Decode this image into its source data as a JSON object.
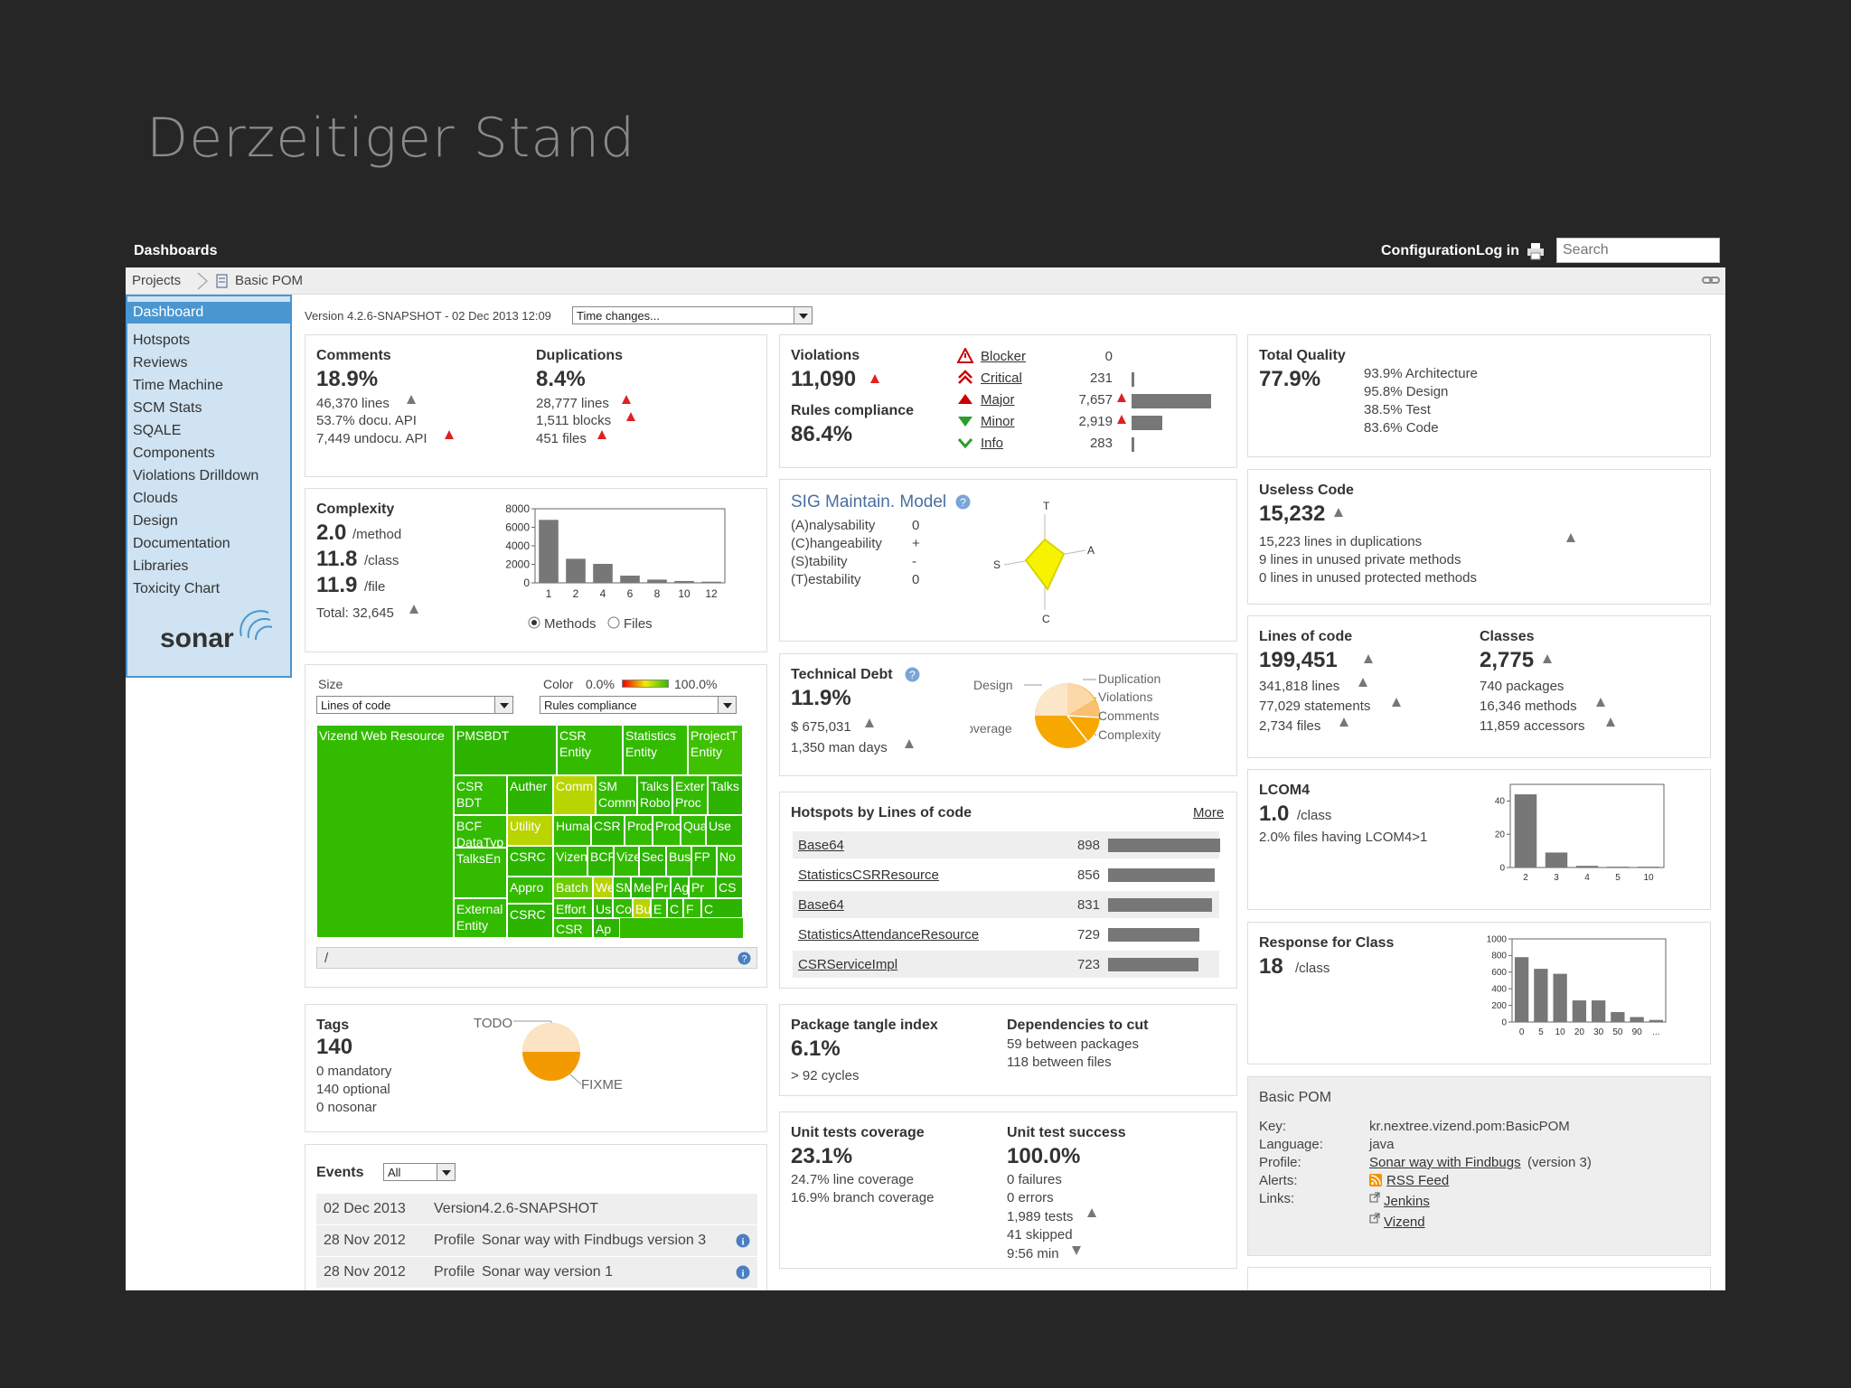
{
  "slide_title": "Derzeitiger Stand",
  "topbar": {
    "dashboards": "Dashboards",
    "configuration": "Configuration",
    "login": "Log in",
    "search_placeholder": "Search"
  },
  "breadcrumb": {
    "projects": "Projects",
    "project": "Basic POM"
  },
  "sidebar": {
    "items": [
      "Dashboard",
      "Hotspots",
      "Reviews",
      "Time Machine",
      "SCM Stats",
      "SQALE",
      "Components",
      "Violations Drilldown",
      "Clouds",
      "Design",
      "Documentation",
      "Libraries",
      "Toxicity Chart"
    ],
    "logo": "sonar"
  },
  "version_line": "Version 4.2.6-SNAPSHOT - 02 Dec 2013 12:09",
  "time_changes": "Time changes...",
  "comments": {
    "label": "Comments",
    "value": "18.9%",
    "lines": "46,370 lines",
    "docu_api": "53.7% docu. API",
    "undocu_api": "7,449 undocu. API"
  },
  "duplications": {
    "label": "Duplications",
    "value": "8.4%",
    "lines": "28,777 lines",
    "blocks": "1,511 blocks",
    "files": "451 files"
  },
  "complexity": {
    "label": "Complexity",
    "per_method": "2.0",
    "per_method_unit": "/method",
    "per_class": "11.8",
    "per_class_unit": "/class",
    "per_file": "11.9",
    "per_file_unit": "/file",
    "total": "Total: 32,645",
    "radio_methods": "Methods",
    "radio_files": "Files"
  },
  "complexity_chart": {
    "type": "bar",
    "categories": [
      "1",
      "2",
      "4",
      "6",
      "8",
      "10",
      "12"
    ],
    "values": [
      6800,
      2600,
      2050,
      780,
      350,
      200,
      130
    ],
    "ylim": [
      0,
      8000
    ],
    "yticks": [
      "8000",
      "6000",
      "4000",
      "2000",
      "0"
    ]
  },
  "treemap": {
    "size_label": "Size",
    "color_label": "Color",
    "color_min": "0.0%",
    "color_max": "100.0%",
    "size_select": "Lines of code",
    "color_select": "Rules compliance",
    "path": "/",
    "cells": [
      "Vizend Web Resource",
      "PMSBDT",
      "CSR Entity",
      "Statistics Entity",
      "ProjectT Entity",
      "CSR BDT",
      "Auther",
      "Comm",
      "SM Comm",
      "Talks Robo",
      "Exter Proc",
      "Talks",
      "BCF DataTyp",
      "Utility",
      "Huma",
      "CSR",
      "Prod",
      "Proc",
      "Qua",
      "Use",
      "TalksEn",
      "CSRC",
      "Vizen",
      "BCF",
      "Vize",
      "Sec",
      "Bus",
      "FP",
      "No",
      "Appro",
      "Batch",
      "We",
      "SM",
      "Me",
      "Pr",
      "Ag",
      "Pr",
      "CS",
      "External Entity",
      "CSRC",
      "Effort",
      "Us",
      "Co",
      "Bu",
      "E",
      "C",
      "F",
      "C",
      "CSR",
      "Ap"
    ]
  },
  "violations": {
    "label": "Violations",
    "value": "11,090",
    "rules_label": "Rules compliance",
    "rules_value": "86.4%",
    "severities": [
      {
        "name": "Blocker",
        "count": "0"
      },
      {
        "name": "Critical",
        "count": "231"
      },
      {
        "name": "Major",
        "count": "7,657"
      },
      {
        "name": "Minor",
        "count": "2,919"
      },
      {
        "name": "Info",
        "count": "283"
      }
    ]
  },
  "sig": {
    "title": "SIG Maintain. Model",
    "rows": [
      {
        "k": "(A)nalysability",
        "v": "0"
      },
      {
        "k": "(C)hangeability",
        "v": "+"
      },
      {
        "k": "(S)tability",
        "v": "-"
      },
      {
        "k": "(T)estability",
        "v": "0"
      }
    ],
    "axes": [
      "T",
      "A",
      "C",
      "S"
    ]
  },
  "tech_debt": {
    "label": "Technical Debt",
    "value": "11.9%",
    "money": "$ 675,031",
    "days": "1,350 man days",
    "pie_labels": [
      "Design",
      "Coverage",
      "Duplication",
      "Violations",
      "Comments",
      "Complexity"
    ]
  },
  "hotspots": {
    "title": "Hotspots by Lines of code",
    "more": "More",
    "rows": [
      {
        "name": "Base64",
        "value": "898",
        "frac": 1.0
      },
      {
        "name": "StatisticsCSRResource",
        "value": "856",
        "frac": 0.953
      },
      {
        "name": "Base64",
        "value": "831",
        "frac": 0.925
      },
      {
        "name": "StatisticsAttendanceResource",
        "value": "729",
        "frac": 0.812
      },
      {
        "name": "CSRServiceImpl",
        "value": "723",
        "frac": 0.805
      }
    ]
  },
  "tags": {
    "label": "Tags",
    "value": "140",
    "mandatory": "0 mandatory",
    "optional": "140 optional",
    "nosonar": "0 nosonar",
    "todo": "TODO",
    "fixme": "FIXME"
  },
  "package": {
    "label": "Package tangle index",
    "value": "6.1%",
    "cycles": "> 92 cycles",
    "deps_label": "Dependencies to cut",
    "deps_packages": "59 between packages",
    "deps_files": "118 between files"
  },
  "events": {
    "label": "Events",
    "filter": "All",
    "rows": [
      {
        "date": "02 Dec 2013",
        "type": "Version",
        "desc": "4.2.6-SNAPSHOT"
      },
      {
        "date": "28 Nov 2012",
        "type": "Profile",
        "desc": "Sonar way with Findbugs version 3"
      },
      {
        "date": "28 Nov 2012",
        "type": "Profile",
        "desc": "Sonar way version 1"
      }
    ]
  },
  "unit_tests": {
    "label": "Unit tests coverage",
    "value": "23.1%",
    "line": "24.7% line coverage",
    "branch": "16.9% branch coverage",
    "success_label": "Unit test success",
    "success_value": "100.0%",
    "failures": "0 failures",
    "errors": "0 errors",
    "tests": "1,989 tests",
    "skipped": "41 skipped",
    "time": "9:56 min"
  },
  "total_quality": {
    "label": "Total Quality",
    "value": "77.9%",
    "architecture": "93.9% Architecture",
    "design": "95.8% Design",
    "test": "38.5% Test",
    "code": "83.6% Code"
  },
  "useless_code": {
    "label": "Useless Code",
    "value": "15,232",
    "dup": "15,223 lines in duplications",
    "private": "9 lines in unused private methods",
    "protected": "0 lines in unused protected methods"
  },
  "loc": {
    "label": "Lines of code",
    "value": "199,451",
    "lines": "341,818 lines",
    "statements": "77,029 statements",
    "files": "2,734 files",
    "classes_label": "Classes",
    "classes_value": "2,775",
    "packages": "740 packages",
    "methods": "16,346 methods",
    "accessors": "11,859 accessors"
  },
  "lcom4": {
    "label": "LCOM4",
    "value": "1.0",
    "unit": "/class",
    "files": "2.0% files having LCOM4>1"
  },
  "lcom4_chart": {
    "type": "bar",
    "categories": [
      "2",
      "3",
      "4",
      "5",
      "10"
    ],
    "values": [
      44,
      9,
      1,
      0.5,
      0.5
    ],
    "ylim": [
      0,
      50
    ],
    "yticks": [
      "40",
      "20",
      "0"
    ]
  },
  "rfc": {
    "label": "Response for Class",
    "value": "18",
    "unit": "/class"
  },
  "rfc_chart": {
    "type": "bar",
    "categories": [
      "0",
      "5",
      "10",
      "20",
      "30",
      "50",
      "90",
      "..."
    ],
    "values": [
      780,
      640,
      580,
      260,
      260,
      120,
      60,
      25
    ],
    "ylim": [
      0,
      1000
    ],
    "yticks": [
      "1000",
      "800",
      "600",
      "400",
      "200",
      "0"
    ]
  },
  "basic_pom": {
    "title": "Basic POM",
    "key_label": "Key:",
    "key": "kr.nextree.vizend.pom:BasicPOM",
    "lang_label": "Language:",
    "lang": "java",
    "profile_label": "Profile:",
    "profile": "Sonar way with Findbugs",
    "profile_version": "(version 3)",
    "alerts_label": "Alerts:",
    "rss": "RSS Feed",
    "links_label": "Links:",
    "jenkins": "Jenkins",
    "vizend": "Vizend"
  },
  "colors": {
    "sidebar_active": "#4a96d0",
    "sidebar_bg": "#cfe3f2",
    "bar": "#777777",
    "up_red": "#dd2222",
    "treemap_green": "#33bb00"
  }
}
